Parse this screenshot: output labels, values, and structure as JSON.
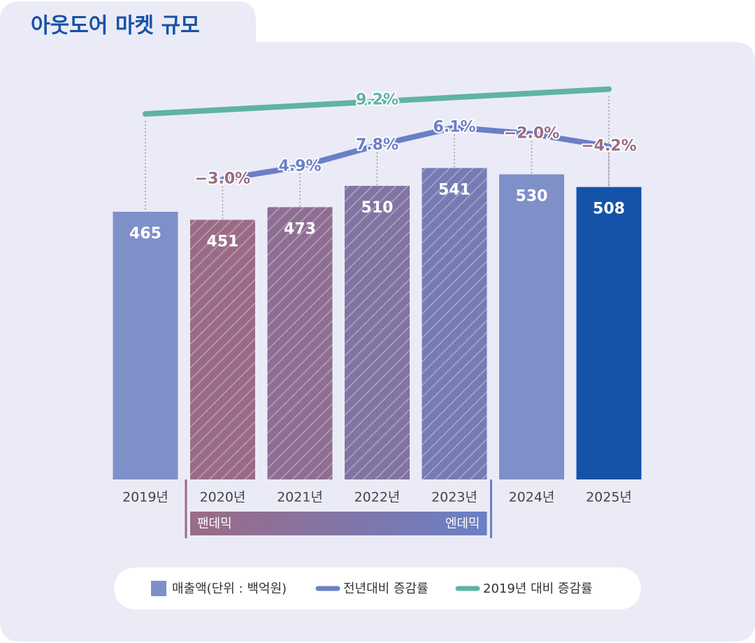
{
  "chart_data": {
    "type": "bar",
    "title": "아웃도어 마켓 규모",
    "categories": [
      "2019년",
      "2020년",
      "2021년",
      "2022년",
      "2023년",
      "2024년",
      "2025년"
    ],
    "ylim": [
      0,
      560
    ],
    "series": [
      {
        "name": "매출액(단위 : 백억원)",
        "color": "#7f8fc8",
        "values": [
          465,
          451,
          473,
          510,
          541,
          530,
          508
        ],
        "colors": [
          "#7f8fc8",
          "#9a6b86",
          "#8e6f93",
          "#8274a2",
          "#777bb3",
          "#7f8fc8",
          "#1553a8"
        ],
        "hatched": [
          false,
          true,
          true,
          true,
          true,
          false,
          false
        ]
      },
      {
        "name": "전년대비 증감률",
        "type": "line",
        "color": "#6b7fc6",
        "negative_color": "#9a6b86",
        "values": [
          null,
          -3.0,
          4.9,
          7.8,
          6.1,
          -2.0,
          -4.2
        ],
        "value_labels": [
          null,
          "−3.0%",
          "4.9%",
          "7.8%",
          "6.1%",
          "−2.0%",
          "−4.2%"
        ]
      },
      {
        "name": "2019년 대비 증감률",
        "type": "line",
        "color": "#5fb3a6",
        "connect_gaps": true,
        "values": [
          0,
          null,
          null,
          null,
          null,
          null,
          9.2
        ],
        "value_labels": [
          null,
          null,
          null,
          null,
          null,
          null,
          "9.2%"
        ]
      }
    ],
    "annotations": {
      "period_start": "팬데믹",
      "period_end": "엔데믹"
    }
  }
}
